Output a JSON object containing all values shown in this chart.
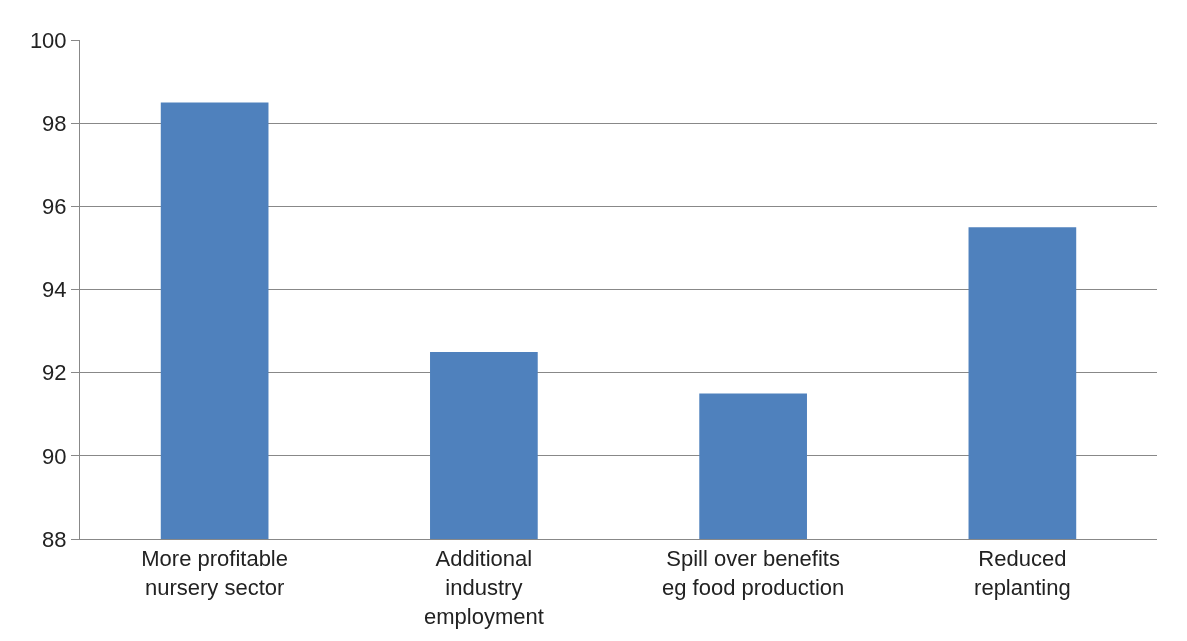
{
  "chart_data": {
    "type": "bar",
    "categories": [
      "More profitable\nnursery sector",
      "Additional\nindustry\nemployment",
      "Spill over benefits\neg food production",
      "Reduced\nreplanting"
    ],
    "values": [
      98.5,
      92.5,
      91.5,
      95.5
    ],
    "color": "#4f81bd",
    "ylim": [
      88,
      100
    ],
    "yticks": [
      88,
      90,
      92,
      94,
      96,
      98,
      100
    ],
    "grid": "y"
  }
}
